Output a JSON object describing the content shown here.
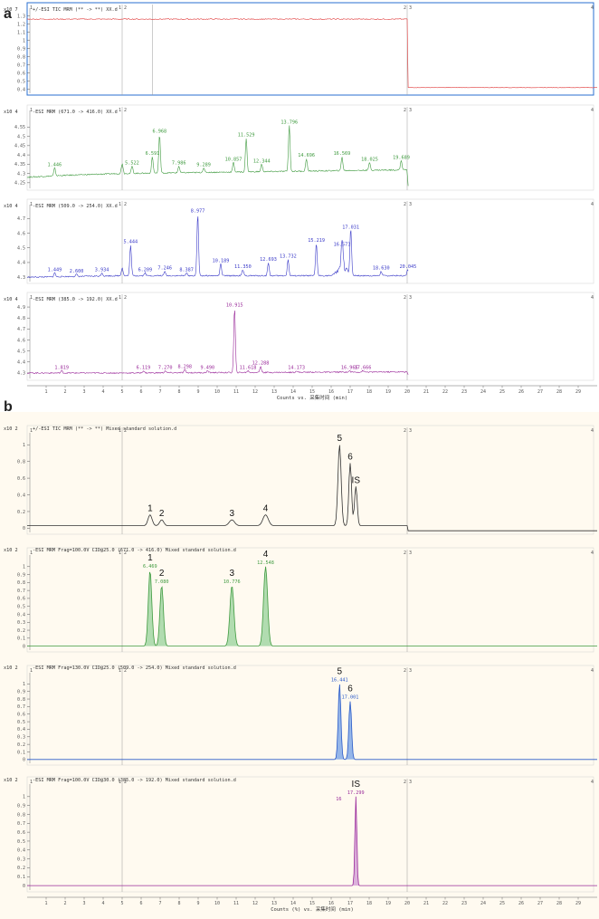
{
  "panel_labels": [
    "a",
    "b"
  ],
  "chart_data": [
    {
      "type": "line",
      "panel": "a",
      "header": "+/-ESI TIC MRM (** -> **) XX.d",
      "y_exp": "x10 7",
      "color": "#e03a3a",
      "x_range": [
        0,
        30
      ],
      "ylim": [
        0.35,
        1.35
      ],
      "y_ticks": [
        "0.4",
        "0.5",
        "0.6",
        "0.7",
        "0.8",
        "0.9",
        "1",
        "1.1",
        "1.2",
        "1.3"
      ],
      "baseline": [
        [
          0,
          1.26
        ],
        [
          5,
          1.26
        ],
        [
          5.02,
          1.1
        ],
        [
          5.05,
          1.26
        ],
        [
          6.6,
          1.26
        ],
        [
          20,
          1.26
        ],
        [
          20.02,
          0.42
        ],
        [
          30,
          0.42
        ]
      ],
      "peaks": []
    },
    {
      "type": "line",
      "panel": "a",
      "header": "-ESI MRM (671.0 -> 416.0) XX.d",
      "y_exp": "x10 4",
      "color": "#3f9a3f",
      "x_range": [
        0,
        30
      ],
      "ylim": [
        4.22,
        4.62
      ],
      "y_ticks": [
        "4.25",
        "4.3",
        "4.35",
        "4.4",
        "4.45",
        "4.5",
        "4.55"
      ],
      "baseline": [
        [
          0,
          4.28
        ],
        [
          2,
          4.29
        ],
        [
          4.9,
          4.3
        ],
        [
          5,
          4.36
        ],
        [
          5.1,
          4.3
        ],
        [
          20,
          4.32
        ],
        [
          20.05,
          4.23
        ]
      ],
      "peaks": [
        {
          "rt": 1.446,
          "h": 4.33,
          "label": "1.446"
        },
        {
          "rt": 5.522,
          "h": 4.34,
          "label": "5.522"
        },
        {
          "rt": 6.591,
          "h": 4.39,
          "label": "6.591"
        },
        {
          "rt": 6.968,
          "h": 4.51,
          "label": "6.968"
        },
        {
          "rt": 7.986,
          "h": 4.34,
          "label": "7.986"
        },
        {
          "rt": 9.289,
          "h": 4.33,
          "label": "9.289"
        },
        {
          "rt": 10.857,
          "h": 4.36,
          "label": "10.857"
        },
        {
          "rt": 11.529,
          "h": 4.49,
          "label": "11.529"
        },
        {
          "rt": 12.344,
          "h": 4.35,
          "label": "12.344"
        },
        {
          "rt": 13.796,
          "h": 4.56,
          "label": "13.796"
        },
        {
          "rt": 14.696,
          "h": 4.38,
          "label": "14.696"
        },
        {
          "rt": 16.569,
          "h": 4.39,
          "label": "16.569"
        },
        {
          "rt": 18.025,
          "h": 4.36,
          "label": "18.025"
        },
        {
          "rt": 19.689,
          "h": 4.37,
          "label": "19.689"
        }
      ]
    },
    {
      "type": "line",
      "panel": "a",
      "header": "-ESI MRM (509.0 -> 254.0) XX.d",
      "y_exp": "x10 4",
      "color": "#3a3ac8",
      "x_range": [
        0,
        30
      ],
      "ylim": [
        4.27,
        4.77
      ],
      "y_ticks": [
        "4.3",
        "4.4",
        "4.5",
        "4.6",
        "4.7"
      ],
      "baseline": [
        [
          0,
          4.3
        ],
        [
          4.9,
          4.31
        ],
        [
          5,
          4.37
        ],
        [
          5.1,
          4.31
        ],
        [
          20,
          4.31
        ],
        [
          20.05,
          4.28
        ]
      ],
      "peaks": [
        {
          "rt": 1.449,
          "h": 4.33,
          "label": "1.449"
        },
        {
          "rt": 2.6,
          "h": 4.32,
          "label": "2.600"
        },
        {
          "rt": 3.934,
          "h": 4.33,
          "label": "3.934"
        },
        {
          "rt": 5.444,
          "h": 4.52,
          "label": "5.444"
        },
        {
          "rt": 6.209,
          "h": 4.33,
          "label": "6.209"
        },
        {
          "rt": 7.246,
          "h": 4.34,
          "label": "7.246"
        },
        {
          "rt": 8.387,
          "h": 4.33,
          "label": "8.387"
        },
        {
          "rt": 8.977,
          "h": 4.73,
          "label": "8.977"
        },
        {
          "rt": 10.189,
          "h": 4.39,
          "label": "10.189"
        },
        {
          "rt": 11.35,
          "h": 4.35,
          "label": "11.350"
        },
        {
          "rt": 12.693,
          "h": 4.4,
          "label": "12.693"
        },
        {
          "rt": 13.732,
          "h": 4.42,
          "label": "13.732"
        },
        {
          "rt": 15.219,
          "h": 4.53,
          "label": "15.219"
        },
        {
          "rt": 16.573,
          "h": 4.5,
          "label": "16.573"
        },
        {
          "rt": 17.031,
          "h": 4.62,
          "label": "17.031"
        },
        {
          "rt": 18.63,
          "h": 4.34,
          "label": "18.630"
        },
        {
          "rt": 20.045,
          "h": 4.35,
          "label": "20.045"
        }
      ]
    },
    {
      "type": "line",
      "panel": "a",
      "header": "-ESI MRM (385.0 -> 192.0) XX.d",
      "y_exp": "x10 4",
      "color": "#9a2a9a",
      "x_range": [
        0,
        30
      ],
      "ylim": [
        4.25,
        4.95
      ],
      "y_ticks": [
        "4.3",
        "4.4",
        "4.5",
        "4.6",
        "4.7",
        "4.8",
        "4.9"
      ],
      "baseline": [
        [
          0,
          4.3
        ],
        [
          4.9,
          4.3
        ],
        [
          5,
          4.3
        ],
        [
          20,
          4.31
        ],
        [
          20.05,
          4.28
        ]
      ],
      "peaks": [
        {
          "rt": 1.819,
          "h": 4.32,
          "label": "1.819"
        },
        {
          "rt": 6.119,
          "h": 4.32,
          "label": "6.119"
        },
        {
          "rt": 7.27,
          "h": 4.32,
          "label": "7.270"
        },
        {
          "rt": 8.298,
          "h": 4.33,
          "label": "8.298"
        },
        {
          "rt": 9.49,
          "h": 4.32,
          "label": "9.490"
        },
        {
          "rt": 10.915,
          "h": 4.89,
          "label": "10.915"
        },
        {
          "rt": 11.618,
          "h": 4.32,
          "label": "11.618"
        },
        {
          "rt": 12.288,
          "h": 4.36,
          "label": "12.288"
        },
        {
          "rt": 14.173,
          "h": 4.32,
          "label": "14.173"
        },
        {
          "rt": 16.966,
          "h": 4.32,
          "label": "16.966"
        },
        {
          "rt": 17.666,
          "h": 4.32,
          "label": "17.666"
        }
      ]
    },
    {
      "type": "line",
      "panel": "b",
      "header": "+/-ESI TIC MRM (** -> **) Mixed standard solution.d",
      "y_exp": "x10 2",
      "color": "#333333",
      "x_range": [
        0,
        30
      ],
      "ylim": [
        -0.05,
        1.1
      ],
      "y_ticks": [
        "0",
        "0.2",
        "0.4",
        "0.6",
        "0.8",
        "1"
      ],
      "baseline": [
        [
          0,
          0.03
        ],
        [
          20,
          0.03
        ],
        [
          20.02,
          -0.03
        ],
        [
          30,
          -0.03
        ]
      ],
      "peaks": [
        {
          "rt": 6.469,
          "h": 0.16,
          "num": "1",
          "w": 0.15
        },
        {
          "rt": 7.08,
          "h": 0.1,
          "num": "2",
          "w": 0.15
        },
        {
          "rt": 10.776,
          "h": 0.1,
          "num": "3",
          "w": 0.2
        },
        {
          "rt": 12.548,
          "h": 0.16,
          "num": "4",
          "w": 0.2
        },
        {
          "rt": 16.441,
          "h": 1.0,
          "num": "5",
          "w": 0.12
        },
        {
          "rt": 17.001,
          "h": 0.78,
          "num": "6",
          "w": 0.1
        },
        {
          "rt": 17.299,
          "h": 0.5,
          "num": "IS",
          "w": 0.1
        }
      ]
    },
    {
      "type": "line",
      "panel": "b",
      "header": "-ESI MRM Frag=100.0V CID@25.0 (671.0 -> 416.0) Mixed standard solution.d",
      "y_exp": "x10 2",
      "color": "#3f9a3f",
      "fill": "#a8d8a8",
      "x_range": [
        0,
        30
      ],
      "ylim": [
        -0.05,
        1.1
      ],
      "y_ticks": [
        "0",
        "0.1",
        "0.2",
        "0.3",
        "0.4",
        "0.5",
        "0.6",
        "0.7",
        "0.8",
        "0.9",
        "1"
      ],
      "baseline": [
        [
          0,
          0
        ],
        [
          30,
          0
        ]
      ],
      "peaks": [
        {
          "rt": 6.469,
          "h": 0.95,
          "num": "1",
          "label": "6.469",
          "w": 0.13
        },
        {
          "rt": 7.08,
          "h": 0.76,
          "num": "2",
          "label": "7.080",
          "w": 0.13
        },
        {
          "rt": 10.776,
          "h": 0.76,
          "num": "3",
          "label": "10.776",
          "w": 0.15
        },
        {
          "rt": 12.548,
          "h": 1.0,
          "num": "4",
          "label": "12.548",
          "w": 0.15
        }
      ]
    },
    {
      "type": "line",
      "panel": "b",
      "header": "-ESI MRM Frag=130.0V CID@25.0 (509.0 -> 254.0) Mixed standard solution.d",
      "y_exp": "x10 2",
      "color": "#2a5ac8",
      "fill": "#8aaee8",
      "x_range": [
        0,
        30
      ],
      "ylim": [
        -0.05,
        1.1
      ],
      "y_ticks": [
        "0",
        "0.1",
        "0.2",
        "0.3",
        "0.4",
        "0.5",
        "0.6",
        "0.7",
        "0.8",
        "0.9",
        "1"
      ],
      "baseline": [
        [
          0,
          0
        ],
        [
          30,
          0
        ]
      ],
      "peaks": [
        {
          "rt": 16.441,
          "h": 1.0,
          "num": "5",
          "label": "16.441",
          "w": 0.1
        },
        {
          "rt": 17.001,
          "h": 0.77,
          "num": "6",
          "label": "17.001",
          "w": 0.1
        }
      ]
    },
    {
      "type": "line",
      "panel": "b",
      "header": "-ESI MRM Frag=100.0V CID@30.0 (385.0 -> 192.0) Mixed standard solution.d",
      "y_exp": "x10 2",
      "color": "#9a2a9a",
      "fill": "#d8a8d8",
      "x_range": [
        0,
        30
      ],
      "ylim": [
        -0.05,
        1.1
      ],
      "y_ticks": [
        "0",
        "0.1",
        "0.2",
        "0.3",
        "0.4",
        "0.5",
        "0.6",
        "0.7",
        "0.8",
        "0.9",
        "1"
      ],
      "baseline": [
        [
          0,
          0
        ],
        [
          30,
          0
        ]
      ],
      "peaks": [
        {
          "rt": 17.299,
          "h": 1.0,
          "num": "IS",
          "label": "17.299",
          "w": 0.07
        },
        {
          "rt": 16.4,
          "h": 0,
          "label": "16"
        }
      ]
    }
  ],
  "x_ticks": [
    "1",
    "2",
    "3",
    "4",
    "5",
    "6",
    "7",
    "8",
    "9",
    "10",
    "11",
    "12",
    "13",
    "14",
    "15",
    "16",
    "17",
    "18",
    "19",
    "20",
    "21",
    "22",
    "23",
    "24",
    "25",
    "26",
    "27",
    "28",
    "29"
  ],
  "xlabel_a": "Counts vs. 采集时间 (min)",
  "xlabel_b": "Counts (%) vs. 采集时间 (min)"
}
